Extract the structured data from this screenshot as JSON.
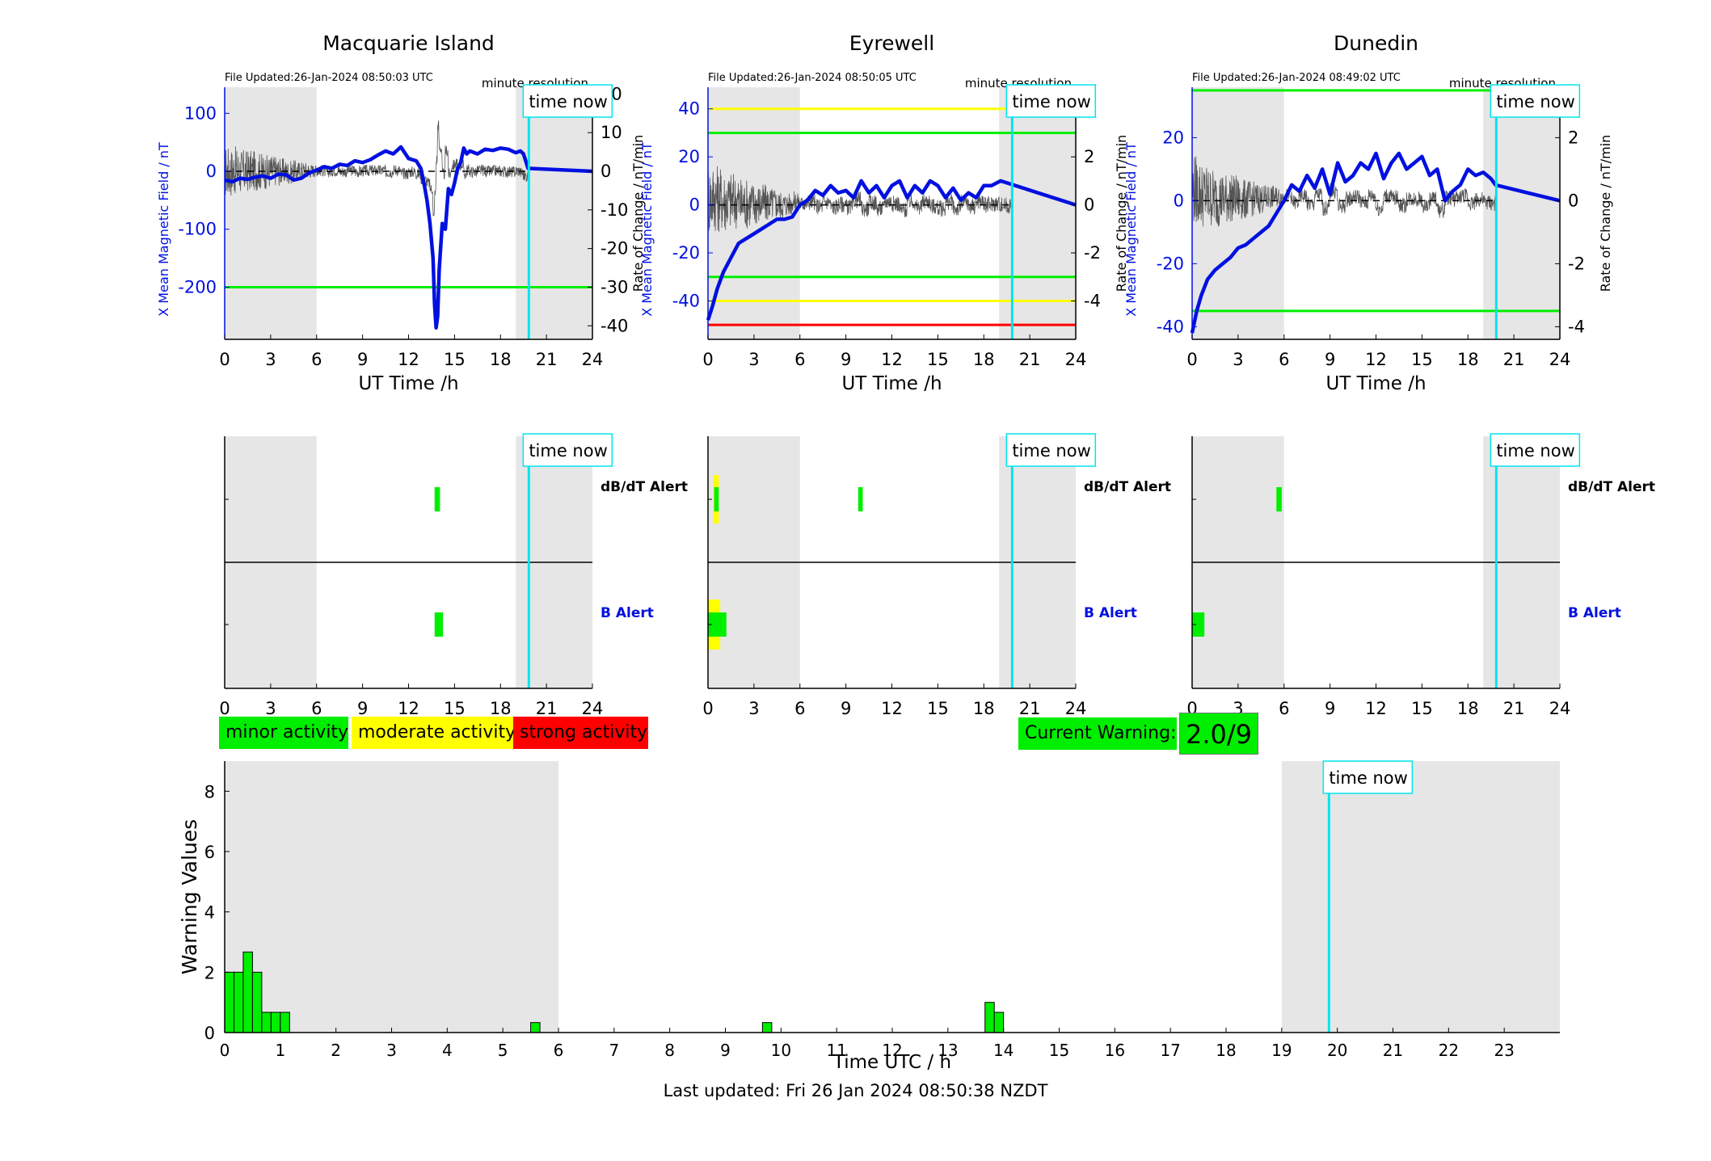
{
  "colors": {
    "shade": "#e6e6e6",
    "field": "#0010e0",
    "rate": "#555555",
    "now": "#00e5ee",
    "green": "#00ee00",
    "yellow": "#ffff00",
    "red": "#ff0000"
  },
  "legend": {
    "minor": "minor activity",
    "moderate": "moderate activity",
    "strong": "strong activity"
  },
  "warning": {
    "label": "Current Warning:",
    "value": "2.0/9"
  },
  "footer": "Last updated: Fri 26 Jan 2024 08:50:38 NZDT",
  "chart_data": [
    {
      "type": "line",
      "title": "Macquarie Island",
      "file_updated": "File Updated:26-Jan-2024 08:50:03 UTC",
      "resolution": "minute resolution",
      "time_now_label": "time now",
      "time_now": 19.85,
      "xlabel": "UT Time /h",
      "ylabel_left": "X Mean Magnetic Field / nT",
      "ylabel_right": "Rate of Change / nT/min",
      "xlim": [
        0,
        24
      ],
      "xticks": [
        0,
        3,
        6,
        9,
        12,
        15,
        18,
        21,
        24
      ],
      "ylim_left": [
        -290,
        145
      ],
      "yticks_left": [
        100,
        0,
        -100,
        -200
      ],
      "ylim_right": [
        -43.5,
        21.75
      ],
      "yticks_right": [
        20,
        10,
        0,
        -10,
        -20,
        -30,
        -40
      ],
      "shaded": [
        [
          0,
          6
        ],
        [
          19,
          24
        ]
      ],
      "thresholds": [
        {
          "value": -200,
          "color": "green"
        }
      ],
      "field": {
        "x": [
          0,
          0.5,
          1,
          1.5,
          2,
          2.5,
          3,
          3.5,
          4,
          4.5,
          5,
          5.5,
          6,
          6.5,
          7,
          7.5,
          8,
          8.5,
          9,
          9.5,
          10,
          10.5,
          11,
          11.5,
          12,
          12.5,
          12.8,
          13,
          13.2,
          13.4,
          13.6,
          13.7,
          13.8,
          13.9,
          14,
          14.2,
          14.4,
          14.6,
          14.8,
          15,
          15.2,
          15.4,
          15.6,
          15.8,
          16,
          16.5,
          17,
          17.5,
          18,
          18.5,
          19,
          19.3,
          19.5,
          19.8,
          24
        ],
        "y": [
          -15,
          -18,
          -12,
          -14,
          -10,
          -8,
          -12,
          -5,
          -6,
          -15,
          -12,
          -3,
          2,
          8,
          5,
          12,
          10,
          18,
          15,
          20,
          28,
          35,
          30,
          42,
          22,
          18,
          5,
          -20,
          -50,
          -90,
          -150,
          -230,
          -270,
          -250,
          -170,
          -90,
          -100,
          -30,
          -40,
          -20,
          5,
          15,
          40,
          30,
          35,
          30,
          38,
          36,
          40,
          38,
          32,
          35,
          30,
          5,
          0
        ]
      },
      "alerts": {
        "dbdt_label": "dB/dT Alert",
        "b_label": "B Alert",
        "dbdt": [
          {
            "start": 13.7,
            "end": 14.05,
            "color": "green"
          }
        ],
        "b": [
          {
            "start": 13.7,
            "end": 14.25,
            "color": "green"
          }
        ]
      }
    },
    {
      "type": "line",
      "title": "Eyrewell",
      "file_updated": "File Updated:26-Jan-2024 08:50:05 UTC",
      "resolution": "minute resolution",
      "time_now_label": "time now",
      "time_now": 19.85,
      "xlabel": "UT Time /h",
      "ylabel_left": "X Mean Magnetic Field / nT",
      "ylabel_right": "Rate of Change / nT/min",
      "xlim": [
        0,
        24
      ],
      "xticks": [
        0,
        3,
        6,
        9,
        12,
        15,
        18,
        21,
        24
      ],
      "ylim_left": [
        -56,
        49
      ],
      "yticks_left": [
        40,
        20,
        0,
        -20,
        -40
      ],
      "ylim_right": [
        -5.6,
        4.9
      ],
      "yticks_right": [
        4,
        2,
        0,
        -2,
        -4
      ],
      "shaded": [
        [
          0,
          6
        ],
        [
          19,
          24
        ]
      ],
      "thresholds": [
        {
          "value": 40,
          "color": "yellow"
        },
        {
          "value": 30,
          "color": "green"
        },
        {
          "value": -30,
          "color": "green"
        },
        {
          "value": -40,
          "color": "yellow"
        },
        {
          "value": -50,
          "color": "red"
        }
      ],
      "field": {
        "x": [
          0,
          0.3,
          0.6,
          1,
          1.5,
          2,
          2.5,
          3,
          3.5,
          4,
          4.5,
          5,
          5.5,
          6,
          6.5,
          7,
          7.5,
          8,
          8.5,
          9,
          9.5,
          10,
          10.5,
          11,
          11.5,
          12,
          12.5,
          13,
          13.5,
          14,
          14.5,
          15,
          15.5,
          16,
          16.5,
          17,
          17.5,
          18,
          18.5,
          19.1,
          24
        ],
        "y": [
          -48,
          -42,
          -35,
          -28,
          -22,
          -16,
          -14,
          -12,
          -10,
          -8,
          -6,
          -6,
          -5,
          0,
          2,
          6,
          4,
          8,
          5,
          6,
          3,
          10,
          5,
          8,
          3,
          8,
          10,
          3,
          8,
          5,
          10,
          8,
          3,
          7,
          2,
          5,
          3,
          8,
          8,
          10,
          0
        ]
      },
      "alerts": {
        "dbdt_label": "dB/dT Alert",
        "b_label": "B Alert",
        "dbdt": [
          {
            "start": 0.35,
            "end": 0.7,
            "color": "yellow"
          },
          {
            "start": 0.4,
            "end": 0.7,
            "color": "green"
          },
          {
            "start": 9.8,
            "end": 10.1,
            "color": "green"
          }
        ],
        "b": [
          {
            "start": 0,
            "end": 0.8,
            "color": "yellow"
          },
          {
            "start": 0,
            "end": 1.2,
            "color": "green"
          }
        ]
      }
    },
    {
      "type": "line",
      "title": "Dunedin",
      "file_updated": "File Updated:26-Jan-2024 08:49:02 UTC",
      "resolution": "minute resolution",
      "time_now_label": "time now",
      "time_now": 19.85,
      "xlabel": "UT Time /h",
      "ylabel_left": "X Mean Magnetic Field / nT",
      "ylabel_right": "Rate of Change / nT/min",
      "xlim": [
        0,
        24
      ],
      "xticks": [
        0,
        3,
        6,
        9,
        12,
        15,
        18,
        21,
        24
      ],
      "ylim_left": [
        -44,
        36
      ],
      "yticks_left": [
        20,
        0,
        -20,
        -40
      ],
      "ylim_right": [
        -4.4,
        3.6
      ],
      "yticks_right": [
        2,
        0,
        -2,
        -4
      ],
      "shaded": [
        [
          0,
          6
        ],
        [
          19,
          24
        ]
      ],
      "thresholds": [
        {
          "value": 35,
          "color": "green"
        },
        {
          "value": -35,
          "color": "green"
        }
      ],
      "field": {
        "x": [
          0,
          0.3,
          0.6,
          1,
          1.5,
          2,
          2.5,
          3,
          3.5,
          4,
          4.5,
          5,
          5.5,
          6,
          6.5,
          7,
          7.5,
          8,
          8.5,
          9,
          9.5,
          10,
          10.5,
          11,
          11.5,
          12,
          12.5,
          13,
          13.5,
          14,
          14.5,
          15,
          15.5,
          16,
          16.5,
          17,
          17.5,
          18,
          18.5,
          19,
          19.5,
          19.8,
          24
        ],
        "y": [
          -42,
          -35,
          -30,
          -25,
          -22,
          -20,
          -18,
          -15,
          -14,
          -12,
          -10,
          -8,
          -4,
          0,
          5,
          3,
          8,
          4,
          10,
          2,
          12,
          6,
          8,
          12,
          10,
          15,
          7,
          12,
          15,
          10,
          12,
          14,
          8,
          10,
          0,
          3,
          5,
          10,
          8,
          9,
          7,
          5,
          0
        ]
      },
      "alerts": {
        "dbdt_label": "dB/dT Alert",
        "b_label": "B Alert",
        "dbdt": [
          {
            "start": 5.5,
            "end": 5.85,
            "color": "green"
          }
        ],
        "b": [
          {
            "start": 0,
            "end": 0.8,
            "color": "green"
          }
        ]
      }
    },
    {
      "type": "bar",
      "xlabel": "Time UTC / h",
      "ylabel": "Warning Values",
      "xlim": [
        0,
        24
      ],
      "xticks": [
        0,
        1,
        2,
        3,
        4,
        5,
        6,
        7,
        8,
        9,
        10,
        11,
        12,
        13,
        14,
        15,
        16,
        17,
        18,
        19,
        20,
        21,
        22,
        23
      ],
      "ylim": [
        0,
        9
      ],
      "yticks": [
        0,
        2,
        4,
        6,
        8
      ],
      "shaded": [
        [
          0,
          6
        ],
        [
          19,
          24
        ]
      ],
      "time_now_label": "time now",
      "time_now": 19.85,
      "bar_width": 0.1667,
      "x": [
        0,
        0.1667,
        0.3333,
        0.5,
        0.6667,
        0.8333,
        1.0,
        5.5,
        9.6667,
        13.6667,
        13.8333
      ],
      "values": [
        2.0,
        2.0,
        2.67,
        2.0,
        0.67,
        0.67,
        0.67,
        0.33,
        0.33,
        1.0,
        0.67
      ]
    }
  ]
}
